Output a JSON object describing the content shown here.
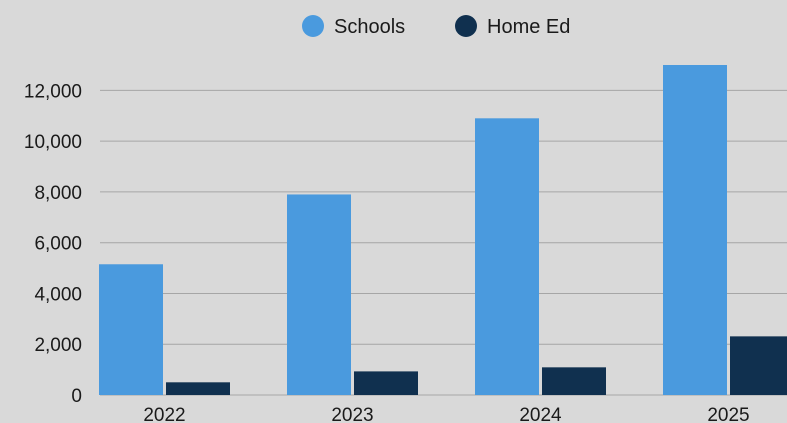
{
  "chart_data": {
    "type": "bar",
    "categories": [
      "2022",
      "2023",
      "2024",
      "2025"
    ],
    "series": [
      {
        "name": "Schools",
        "color": "#4a9ade",
        "values": [
          5150,
          7900,
          10900,
          13000
        ]
      },
      {
        "name": "Home Ed",
        "color": "#10304f",
        "values": [
          500,
          930,
          1090,
          2310
        ]
      }
    ],
    "ylim": [
      0,
      13000
    ],
    "yticks": [
      0,
      2000,
      4000,
      6000,
      8000,
      10000,
      12000
    ],
    "ytick_labels": [
      "0",
      "2,000",
      "4,000",
      "6,000",
      "8,000",
      "10,000",
      "12,000"
    ],
    "grid": true,
    "legend_position": "top-center",
    "background": "#d9d9d9",
    "gridline_color": "#a6a6a6"
  }
}
